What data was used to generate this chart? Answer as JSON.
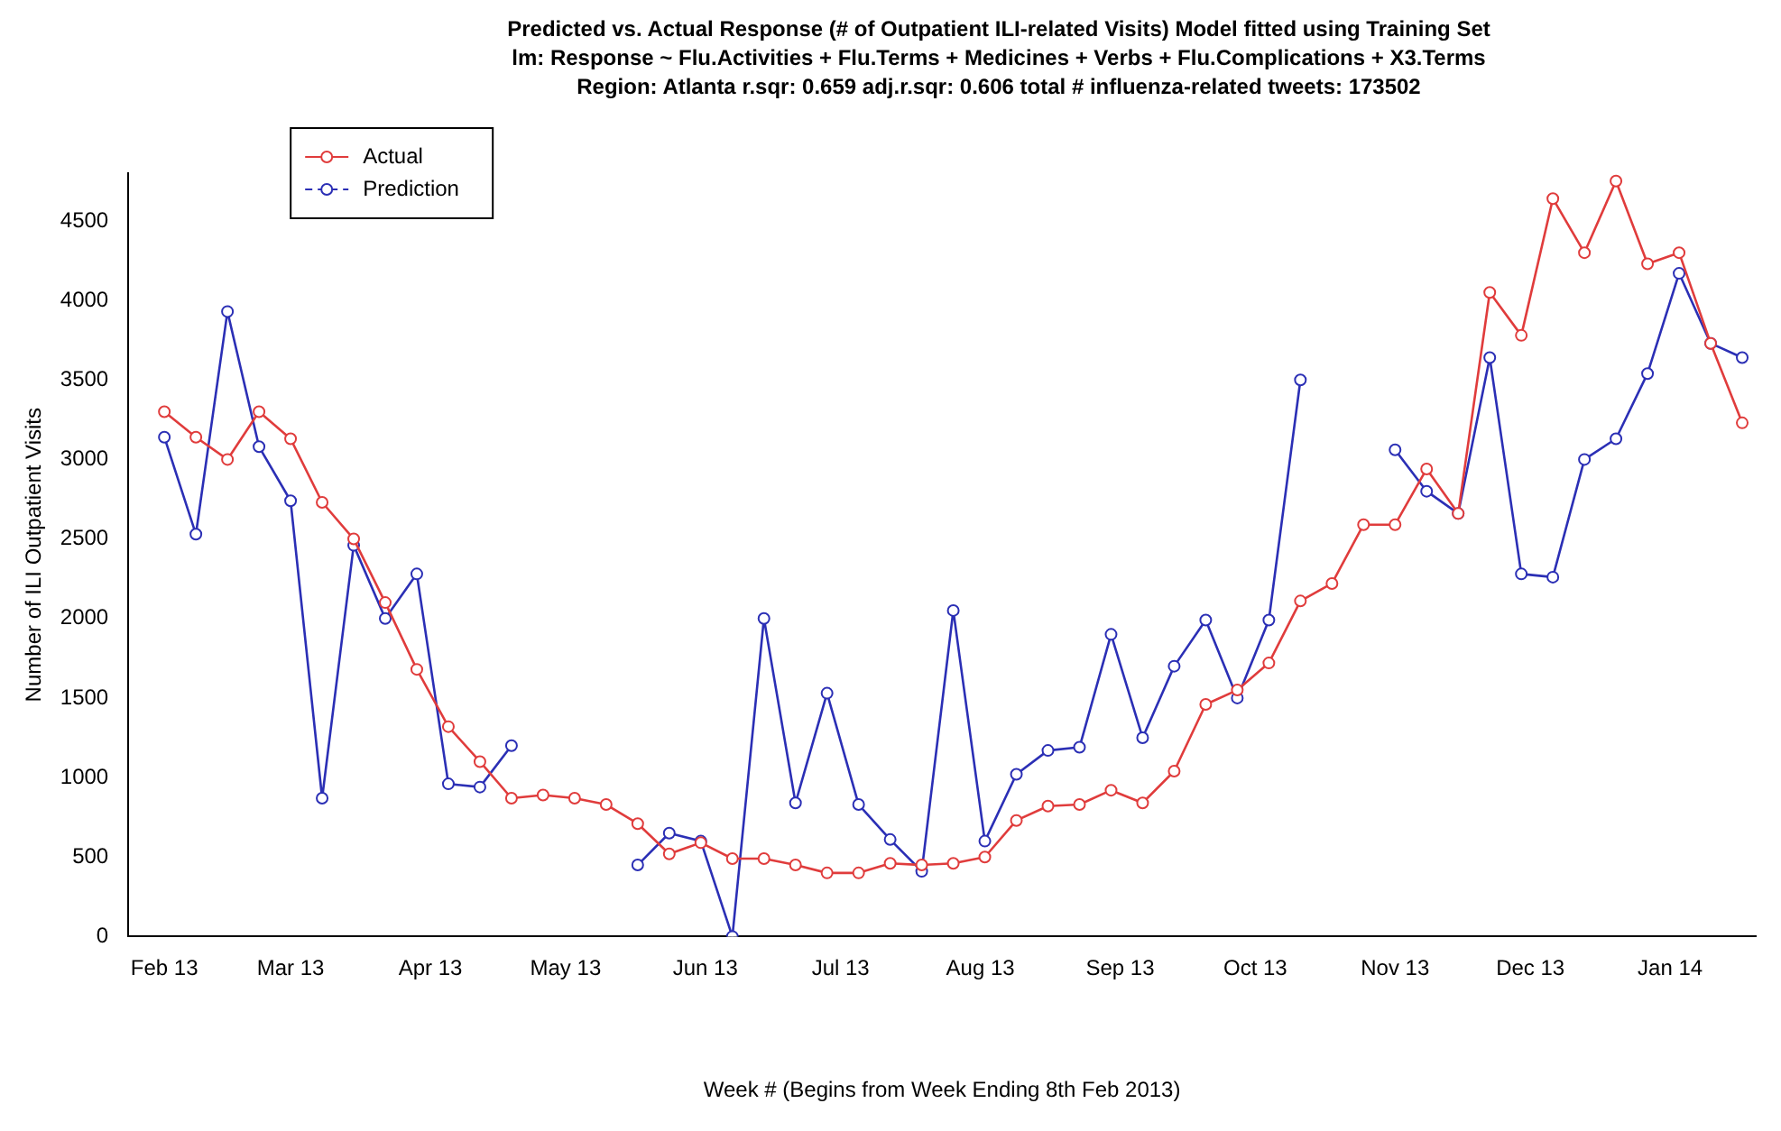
{
  "chart_data": {
    "type": "line",
    "title": "Predicted vs. Actual Response (# of Outpatient ILI-related Visits)   Model fitted using Training Set",
    "subtitle": "lm: Response ~ Flu.Activities + Flu.Terms + Medicines + Verbs + Flu.Complications + X3.Terms\nRegion: Atlanta   r.sqr: 0.659   adj.r.sqr: 0.606   total # influenza-related tweets: 173502",
    "xlabel": "Week # (Begins from Week Ending 8th Feb 2013)",
    "ylabel": "Number of ILI Outpatient Visits",
    "x": [
      "2013-02-01",
      "2013-02-08",
      "2013-02-15",
      "2013-02-22",
      "2013-03-01",
      "2013-03-08",
      "2013-03-15",
      "2013-03-22",
      "2013-03-29",
      "2013-04-05",
      "2013-04-12",
      "2013-04-19",
      "2013-04-26",
      "2013-05-03",
      "2013-05-10",
      "2013-05-17",
      "2013-05-24",
      "2013-05-31",
      "2013-06-07",
      "2013-06-14",
      "2013-06-21",
      "2013-06-28",
      "2013-07-05",
      "2013-07-12",
      "2013-07-19",
      "2013-07-26",
      "2013-08-02",
      "2013-08-09",
      "2013-08-16",
      "2013-08-23",
      "2013-08-30",
      "2013-09-06",
      "2013-09-13",
      "2013-09-20",
      "2013-09-27",
      "2013-10-04",
      "2013-10-11",
      "2013-10-18",
      "2013-10-25",
      "2013-11-01",
      "2013-11-08",
      "2013-11-15",
      "2013-11-22",
      "2013-11-29",
      "2013-12-06",
      "2013-12-13",
      "2013-12-20",
      "2013-12-27",
      "2014-01-03",
      "2014-01-10",
      "2014-01-17"
    ],
    "series": [
      {
        "name": "Actual",
        "color": "#e03c3c",
        "values": [
          3300,
          3140,
          3000,
          3300,
          3130,
          2730,
          2500,
          2100,
          1680,
          1320,
          1100,
          870,
          890,
          870,
          830,
          710,
          520,
          590,
          490,
          490,
          450,
          400,
          400,
          460,
          450,
          460,
          500,
          730,
          820,
          830,
          920,
          840,
          1040,
          1460,
          1550,
          1720,
          2110,
          2220,
          2590,
          2590,
          2940,
          2660,
          4050,
          3780,
          4640,
          4300,
          4750,
          4230,
          4300,
          3730,
          3230
        ]
      },
      {
        "name": "Prediction",
        "color": "#2b2fb5",
        "values": [
          3140,
          2530,
          3930,
          3080,
          2740,
          870,
          2460,
          2000,
          2280,
          960,
          940,
          1200,
          null,
          null,
          null,
          450,
          650,
          600,
          0,
          2000,
          840,
          1530,
          830,
          610,
          410,
          2050,
          600,
          1020,
          1170,
          1190,
          1900,
          1250,
          1700,
          1990,
          1500,
          1990,
          3500,
          null,
          null,
          3060,
          2800,
          2660,
          3640,
          2280,
          2260,
          3000,
          3130,
          3540,
          4170,
          3730,
          3640
        ]
      }
    ],
    "xlim": [
      "2013-01-24",
      "2014-01-20"
    ],
    "xticks": [
      {
        "value": "2013-02-01",
        "label": "Feb 13"
      },
      {
        "value": "2013-03-01",
        "label": "Mar 13"
      },
      {
        "value": "2013-04-01",
        "label": "Apr 13"
      },
      {
        "value": "2013-05-01",
        "label": "May 13"
      },
      {
        "value": "2013-06-01",
        "label": "Jun 13"
      },
      {
        "value": "2013-07-01",
        "label": "Jul 13"
      },
      {
        "value": "2013-08-01",
        "label": "Aug 13"
      },
      {
        "value": "2013-09-01",
        "label": "Sep 13"
      },
      {
        "value": "2013-10-01",
        "label": "Oct 13"
      },
      {
        "value": "2013-11-01",
        "label": "Nov 13"
      },
      {
        "value": "2013-12-01",
        "label": "Dec 13"
      },
      {
        "value": "2014-01-01",
        "label": "Jan 14"
      }
    ],
    "ylim": [
      0,
      4800
    ],
    "yticks": [
      0,
      500,
      1000,
      1500,
      2000,
      2500,
      3000,
      3500,
      4000,
      4500
    ],
    "grid": false,
    "legend": "top left",
    "marker": "circle",
    "line_style": "solid"
  }
}
